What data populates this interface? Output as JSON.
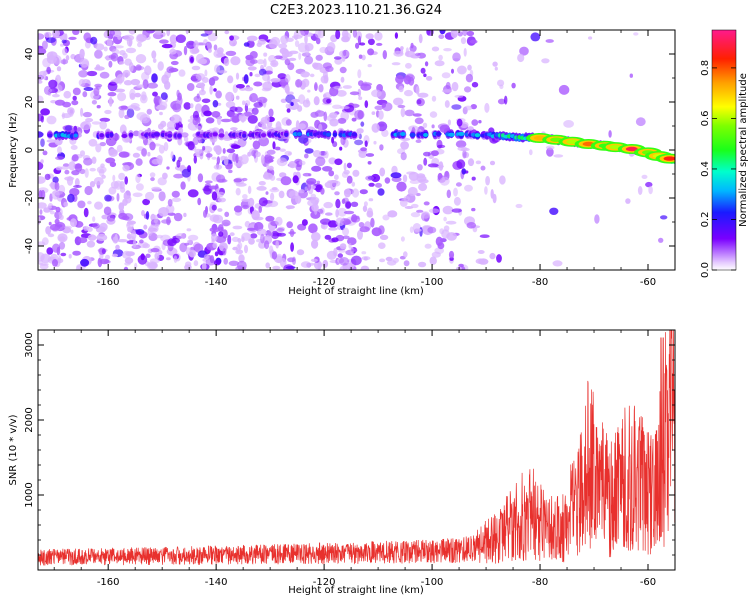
{
  "title": "C2E3.2023.110.21.36.G24",
  "chart_data": [
    {
      "type": "heatmap",
      "xlabel": "Height of straight line (km)",
      "ylabel": "Frequency (Hz)",
      "xlim": [
        -173,
        -55
      ],
      "ylim": [
        -50,
        50
      ],
      "xticks": [
        -160,
        -140,
        -120,
        -100,
        -80,
        -60
      ],
      "yticks": [
        -40,
        -20,
        0,
        20,
        40
      ],
      "colorbar": {
        "label": "Normalized spectral amplitude",
        "range": [
          0.0,
          0.95
        ],
        "ticks": [
          0.0,
          0.2,
          0.4,
          0.6,
          0.8
        ]
      },
      "signal_band": [
        {
          "x": -172,
          "f": 6.0,
          "a": 0.25
        },
        {
          "x": -168,
          "f": 6.2,
          "a": 0.32
        },
        {
          "x": -164,
          "f": 6.0,
          "a": 0.22
        },
        {
          "x": -160,
          "f": 6.0,
          "a": 0.2
        },
        {
          "x": -152,
          "f": 6.3,
          "a": 0.18
        },
        {
          "x": -140,
          "f": 6.2,
          "a": 0.15
        },
        {
          "x": -128,
          "f": 6.5,
          "a": 0.18
        },
        {
          "x": -124,
          "f": 6.8,
          "a": 0.3
        },
        {
          "x": -118,
          "f": 6.5,
          "a": 0.25
        },
        {
          "x": -106,
          "f": 6.5,
          "a": 0.28
        },
        {
          "x": -99,
          "f": 6.5,
          "a": 0.3
        },
        {
          "x": -93,
          "f": 6.5,
          "a": 0.3
        },
        {
          "x": -88,
          "f": 6.0,
          "a": 0.38
        },
        {
          "x": -84,
          "f": 5.2,
          "a": 0.48
        },
        {
          "x": -80,
          "f": 5.0,
          "a": 0.72
        },
        {
          "x": -77,
          "f": 4.3,
          "a": 0.55
        },
        {
          "x": -74,
          "f": 3.4,
          "a": 0.6
        },
        {
          "x": -71,
          "f": 2.5,
          "a": 0.78
        },
        {
          "x": -68,
          "f": 1.8,
          "a": 0.5
        },
        {
          "x": -66,
          "f": 1.2,
          "a": 0.6
        },
        {
          "x": -63,
          "f": 0.4,
          "a": 0.9
        },
        {
          "x": -60,
          "f": -1.0,
          "a": 0.55
        },
        {
          "x": -58,
          "f": -2.5,
          "a": 0.62
        },
        {
          "x": -56,
          "f": -3.6,
          "a": 0.85
        }
      ]
    },
    {
      "type": "line",
      "xlabel": "Height of straight line (km)",
      "ylabel": "SNR (10 * v/v)",
      "xlim": [
        -173,
        -55
      ],
      "ylim": [
        0,
        3200
      ],
      "xticks": [
        -160,
        -140,
        -120,
        -100,
        -80,
        -60
      ],
      "yticks": [
        1000,
        2000,
        3000
      ],
      "color": "#e8302d",
      "envelope": [
        {
          "x": -173,
          "y": 200
        },
        {
          "x": -150,
          "y": 220
        },
        {
          "x": -120,
          "y": 260
        },
        {
          "x": -100,
          "y": 290
        },
        {
          "x": -92,
          "y": 330
        },
        {
          "x": -88,
          "y": 500
        },
        {
          "x": -85,
          "y": 700
        },
        {
          "x": -82,
          "y": 900
        },
        {
          "x": -79,
          "y": 700
        },
        {
          "x": -76,
          "y": 600
        },
        {
          "x": -73,
          "y": 1100
        },
        {
          "x": -71,
          "y": 1700
        },
        {
          "x": -69,
          "y": 1300
        },
        {
          "x": -67,
          "y": 1100
        },
        {
          "x": -65,
          "y": 1250
        },
        {
          "x": -63,
          "y": 1600
        },
        {
          "x": -61,
          "y": 1300
        },
        {
          "x": -59,
          "y": 1100
        },
        {
          "x": -57,
          "y": 1800
        },
        {
          "x": -56,
          "y": 2600
        },
        {
          "x": -55,
          "y": 2000
        }
      ]
    }
  ]
}
